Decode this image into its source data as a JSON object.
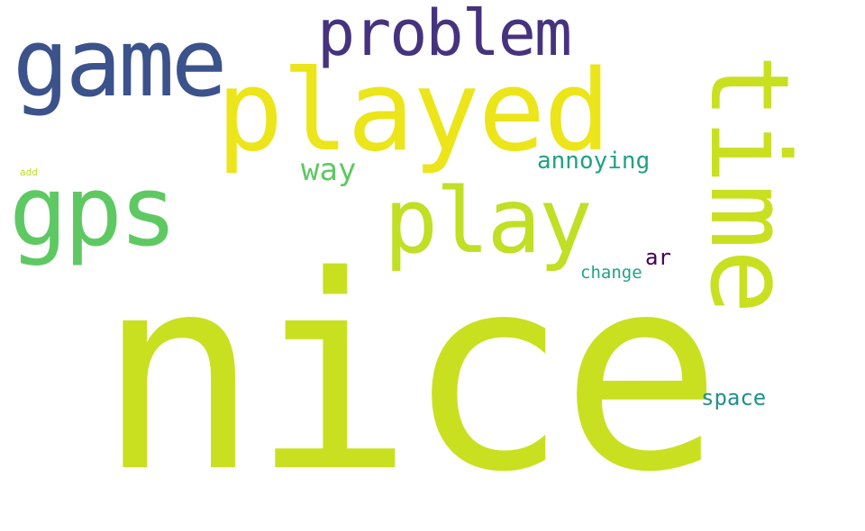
{
  "words": {
    "nice": {
      "text": "nice",
      "color": "#c8e020"
    },
    "played": {
      "text": "played",
      "color": "#ebe51a"
    },
    "game": {
      "text": "game",
      "color": "#3b528b"
    },
    "problem": {
      "text": "problem",
      "color": "#46337e"
    },
    "gps": {
      "text": "gps",
      "color": "#5ec962"
    },
    "play": {
      "text": "play",
      "color": "#c0df25"
    },
    "time": {
      "text": "time",
      "color": "#c8e020"
    },
    "way": {
      "text": "way",
      "color": "#5ec962"
    },
    "annoying": {
      "text": "annoying",
      "color": "#1fa187"
    },
    "change": {
      "text": "change",
      "color": "#20a386"
    },
    "ar": {
      "text": "ar",
      "color": "#440154"
    },
    "space": {
      "text": "space",
      "color": "#21918c"
    },
    "add": {
      "text": "add",
      "color": "#bddf26"
    }
  }
}
